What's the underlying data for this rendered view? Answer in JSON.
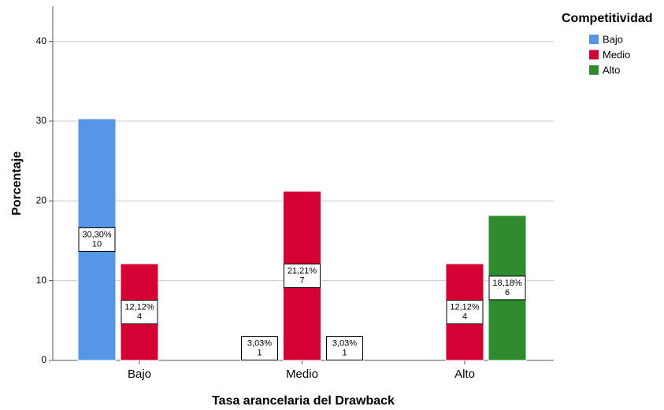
{
  "chart_data": {
    "type": "bar",
    "x_label": "Tasa arancelaria del Drawback",
    "y_label": "Porcentaje",
    "legend_title": "Competitividad",
    "legend_position": "upper right",
    "categories": [
      "Bajo",
      "Medio",
      "Alto"
    ],
    "series": [
      {
        "name": "Bajo",
        "color": "#5596e6",
        "values": [
          30.3,
          3.03,
          null
        ],
        "value_labels": [
          "30,30%",
          "3,03%",
          null
        ],
        "counts": [
          10,
          1,
          null
        ]
      },
      {
        "name": "Medio",
        "color": "#d50032",
        "values": [
          12.12,
          21.21,
          12.12
        ],
        "value_labels": [
          "12,12%",
          "21,21%",
          "12,12%"
        ],
        "counts": [
          4,
          7,
          4
        ]
      },
      {
        "name": "Alto",
        "color": "#2e8b2e",
        "values": [
          null,
          3.03,
          18.18
        ],
        "value_labels": [
          null,
          "3,03%",
          "18,18%"
        ],
        "counts": [
          null,
          1,
          6
        ]
      }
    ],
    "ylim": [
      0,
      44.4
    ],
    "yticks": [
      0,
      10,
      20,
      30,
      40
    ],
    "grid": true
  }
}
